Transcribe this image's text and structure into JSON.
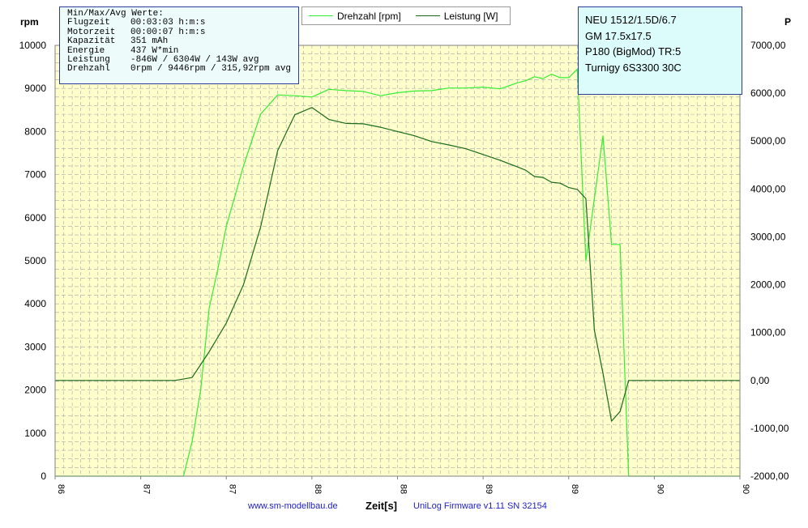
{
  "stats": {
    "title": "Min/Max/Avg Werte:",
    "rows": [
      {
        "label": "Flugzeit",
        "value": "00:03:03 h:m:s"
      },
      {
        "label": "Motorzeit",
        "value": "00:00:07 h:m:s"
      },
      {
        "label": "Kapazität",
        "value": "351 mAh"
      },
      {
        "label": "Energie",
        "value": "437 W*min"
      },
      {
        "label": "Leistung",
        "value": "-846W / 6304W / 143W avg"
      },
      {
        "label": "Drehzahl",
        "value": "0rpm / 9446rpm / 315,92rpm avg"
      }
    ]
  },
  "info": {
    "lines": [
      "NEU 1512/1.5D/6.7",
      "GM 17.5x17.5",
      "P180 (BigMod) TR:5",
      "Turnigy 6S3300  30C"
    ]
  },
  "footer": {
    "website": "www.sm-modellbau.de",
    "xlabel": "Zeit[s]",
    "firmware": "UniLog  Firmware v1.11 SN 32154"
  },
  "colors": {
    "rpm": "#33ee33",
    "power": "#1a6a1a",
    "plot_bg": "#ffffcc",
    "grid": "#a8a8a8",
    "box_border": "#2d3b9c"
  },
  "chart_data": {
    "type": "line",
    "xlabel": "Zeit[s]",
    "x_ticks": [
      "86",
      "87",
      "87",
      "88",
      "88",
      "89",
      "89",
      "90",
      "90"
    ],
    "x_range": [
      86.0,
      90.0
    ],
    "y_left": {
      "label": "rpm",
      "range": [
        0,
        10000
      ],
      "ticks": [
        "0",
        "1000",
        "2000",
        "3000",
        "4000",
        "5000",
        "6000",
        "7000",
        "8000",
        "9000",
        "10000"
      ]
    },
    "y_right": {
      "label": "P",
      "range": [
        -2000,
        7000
      ],
      "ticks": [
        "-2000,00",
        "-1000,00",
        "0,00",
        "1000,00",
        "2000,00",
        "3000,00",
        "4000,00",
        "5000,00",
        "6000,00",
        "7000,00"
      ]
    },
    "grid": true,
    "legend_position": "top-center",
    "series": [
      {
        "name": "Drehzahl [rpm]",
        "axis": "left",
        "x": [
          86.0,
          86.75,
          86.8,
          86.85,
          86.9,
          86.95,
          87.0,
          87.1,
          87.2,
          87.3,
          87.4,
          87.5,
          87.6,
          87.7,
          87.8,
          87.9,
          88.0,
          88.1,
          88.2,
          88.3,
          88.4,
          88.5,
          88.6,
          88.7,
          88.75,
          88.8,
          88.85,
          88.9,
          88.95,
          89.0,
          89.05,
          89.1,
          89.2,
          89.25,
          89.3,
          89.35,
          89.4,
          89.5,
          89.55,
          89.6,
          89.65,
          90.0
        ],
        "values": [
          0,
          0,
          800,
          2000,
          3900,
          4800,
          5800,
          7200,
          8400,
          8850,
          8830,
          8800,
          8980,
          8950,
          8930,
          8830,
          8900,
          8940,
          8950,
          9010,
          9010,
          9030,
          8990,
          9130,
          9180,
          9270,
          9230,
          9330,
          9250,
          9250,
          9446,
          5000,
          7900,
          5380,
          5380,
          0,
          0,
          0,
          0,
          0,
          0,
          0
        ]
      },
      {
        "name": "Leistung [W]",
        "axis": "right",
        "x": [
          86.0,
          86.7,
          86.8,
          86.9,
          87.0,
          87.1,
          87.2,
          87.3,
          87.4,
          87.5,
          87.6,
          87.7,
          87.8,
          87.9,
          88.0,
          88.1,
          88.2,
          88.3,
          88.4,
          88.5,
          88.6,
          88.7,
          88.75,
          88.8,
          88.85,
          88.9,
          88.95,
          89.0,
          89.05,
          89.1,
          89.15,
          89.2,
          89.25,
          89.3,
          89.35,
          89.4,
          89.5,
          89.6,
          89.7,
          89.8,
          90.0
        ],
        "values": [
          0,
          0,
          60,
          600,
          1200,
          2000,
          3200,
          4800,
          5550,
          5700,
          5450,
          5370,
          5360,
          5290,
          5200,
          5110,
          4990,
          4920,
          4840,
          4720,
          4600,
          4460,
          4390,
          4260,
          4240,
          4140,
          4120,
          4030,
          3990,
          3800,
          1050,
          150,
          -850,
          -650,
          0,
          0,
          0,
          0,
          0,
          0,
          0
        ]
      }
    ]
  }
}
